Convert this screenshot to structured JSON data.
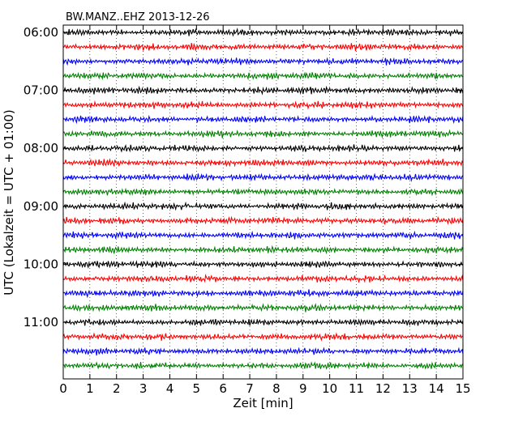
{
  "chart_data": {
    "type": "line",
    "title": "BW.MANZ..EHZ 2013-12-26",
    "xlabel": "Zeit  [min]",
    "ylabel": "UTC (Lokalzeit = UTC + 01:00)",
    "xlim": [
      0,
      15
    ],
    "x_ticks": [
      "0",
      "1",
      "2",
      "3",
      "4",
      "5",
      "6",
      "7",
      "8",
      "9",
      "10",
      "11",
      "12",
      "13",
      "14",
      "15"
    ],
    "y_ticks": [
      "06:00",
      "07:00",
      "08:00",
      "09:00",
      "10:00",
      "11:00"
    ],
    "grid": "vertical dotted",
    "colors": [
      "#000000",
      "#ff0000",
      "#0000ff",
      "#008000"
    ],
    "traces": [
      "06:00",
      "06:15",
      "06:30",
      "06:45",
      "07:00",
      "07:15",
      "07:30",
      "07:45",
      "08:00",
      "08:15",
      "08:30",
      "08:45",
      "09:00",
      "09:15",
      "09:30",
      "09:45",
      "10:00",
      "10:15",
      "10:30",
      "10:45",
      "11:00",
      "11:15",
      "11:30",
      "11:45"
    ]
  }
}
